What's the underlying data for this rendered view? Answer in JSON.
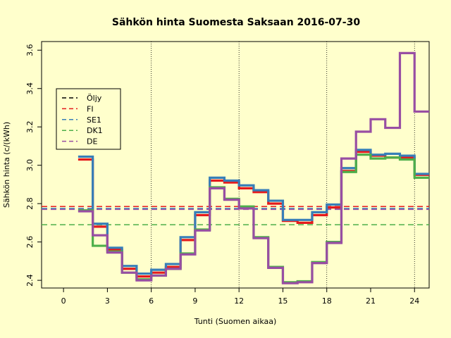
{
  "chart_data": {
    "type": "line",
    "step": true,
    "title": "Sähkön hinta Suomesta Saksaan 2016-07-30",
    "xlabel": "Tunti (Suomen aikaa)",
    "ylabel": "Sähkön hinta (c/(kWh)",
    "xlim": [
      -1.5,
      25.0
    ],
    "ylim": [
      2.36,
      3.645
    ],
    "xticks": [
      0,
      3,
      6,
      9,
      12,
      15,
      18,
      21,
      24
    ],
    "yticks": [
      2.4,
      2.6,
      2.8,
      3.0,
      3.2,
      3.4,
      3.6
    ],
    "ytick_labels": [
      "2.4",
      "2.6",
      "2.8",
      "3.0",
      "3.2",
      "3.4",
      "3.6"
    ],
    "vlines": [
      6,
      12,
      18,
      24
    ],
    "legend_position": "left",
    "series": [
      {
        "name": "Öljy",
        "color": "#000000",
        "style": "dashed",
        "values": []
      },
      {
        "name": "FI",
        "color": "#E41A1C",
        "style": "solid",
        "hline": 2.785,
        "x": [
          1,
          2,
          3,
          4,
          5,
          6,
          7,
          8,
          9,
          10,
          11,
          12,
          13,
          14,
          15,
          16,
          17,
          18,
          19,
          20,
          21,
          22,
          23,
          24,
          25
        ],
        "values": [
          3.03,
          2.68,
          2.56,
          2.46,
          2.42,
          2.44,
          2.47,
          2.61,
          2.74,
          2.92,
          2.91,
          2.88,
          2.86,
          2.8,
          2.71,
          2.7,
          2.74,
          2.78,
          2.97,
          3.07,
          3.05,
          3.04,
          3.04,
          2.95,
          2.95
        ]
      },
      {
        "name": "SE1",
        "color": "#377EB8",
        "style": "solid",
        "hline": 2.775,
        "x": [
          1,
          2,
          3,
          4,
          5,
          6,
          7,
          8,
          9,
          10,
          11,
          12,
          13,
          14,
          15,
          16,
          17,
          18,
          19,
          20,
          21,
          22,
          23,
          24,
          25
        ],
        "values": [
          3.045,
          2.695,
          2.57,
          2.475,
          2.435,
          2.455,
          2.485,
          2.625,
          2.755,
          2.935,
          2.92,
          2.895,
          2.87,
          2.815,
          2.715,
          2.715,
          2.755,
          2.795,
          2.985,
          3.08,
          3.055,
          3.06,
          3.05,
          2.955,
          2.955
        ]
      },
      {
        "name": "DK1",
        "color": "#4DAF4A",
        "style": "solid",
        "hline": 2.69,
        "x": [
          1,
          2,
          3,
          4,
          5,
          6,
          7,
          8,
          9,
          10,
          11,
          12,
          13,
          14,
          15,
          16,
          17,
          18,
          19,
          20,
          21,
          22,
          23,
          24,
          25
        ],
        "values": [
          2.765,
          2.58,
          2.55,
          2.44,
          2.405,
          2.425,
          2.46,
          2.54,
          2.665,
          2.885,
          2.825,
          2.785,
          2.625,
          2.47,
          2.39,
          2.395,
          2.495,
          2.6,
          2.965,
          3.055,
          3.035,
          3.04,
          3.03,
          2.935,
          2.935
        ]
      },
      {
        "name": "DE",
        "color": "#984EA3",
        "style": "solid",
        "hline": 2.77,
        "x": [
          1,
          2,
          3,
          4,
          5,
          6,
          7,
          8,
          9,
          10,
          11,
          12,
          13,
          14,
          15,
          16,
          17,
          18,
          19,
          20,
          21,
          22,
          23,
          24,
          25
        ],
        "values": [
          2.76,
          2.635,
          2.545,
          2.44,
          2.4,
          2.425,
          2.46,
          2.535,
          2.66,
          2.88,
          2.82,
          2.775,
          2.62,
          2.465,
          2.385,
          2.39,
          2.49,
          2.595,
          3.035,
          3.175,
          3.24,
          3.195,
          3.585,
          3.28,
          3.28
        ]
      }
    ]
  }
}
